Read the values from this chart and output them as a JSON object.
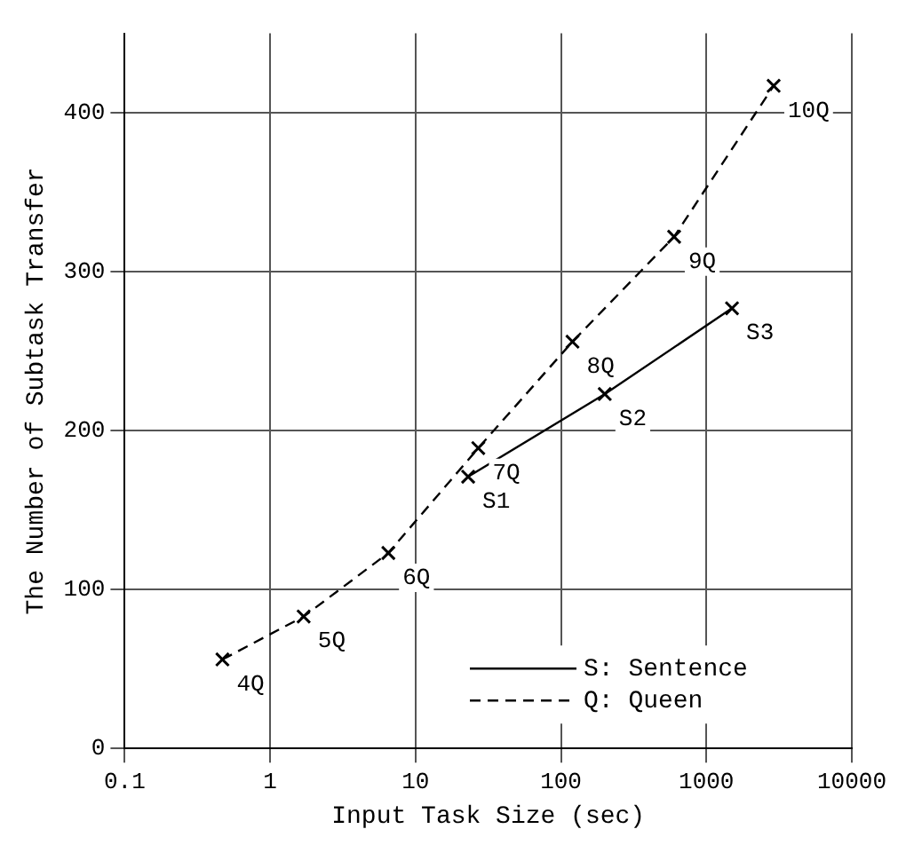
{
  "chart_data": {
    "type": "line",
    "xlabel": "Input Task Size (sec)",
    "ylabel": "The Number of Subtask Transfer",
    "log": "x",
    "xlim": [
      0.1,
      10000
    ],
    "xticks": [
      0.1,
      1,
      10,
      100,
      1000,
      10000
    ],
    "ylim": [
      0,
      450
    ],
    "yticks": [
      0,
      100,
      200,
      300,
      400
    ],
    "grid": true,
    "legend": "bottom right",
    "marker": "cross",
    "series": [
      {
        "name": "S: Sentence",
        "color": "#000000",
        "line_style": "solid",
        "x": [
          23,
          200,
          1500
        ],
        "values": [
          171,
          223,
          277
        ]
      },
      {
        "name": "Q: Queen",
        "color": "#000000",
        "line_style": "dashed",
        "x": [
          0.47,
          1.7,
          6.5,
          27,
          120,
          600,
          2900
        ],
        "values": [
          56,
          83,
          123,
          189,
          256,
          322,
          417
        ]
      }
    ],
    "annotations": [
      {
        "text": "S1",
        "x": 23,
        "y": 171
      },
      {
        "text": "S2",
        "x": 200,
        "y": 223
      },
      {
        "text": "S3",
        "x": 1500,
        "y": 277
      },
      {
        "text": "4Q",
        "x": 0.47,
        "y": 56
      },
      {
        "text": "5Q",
        "x": 1.7,
        "y": 83
      },
      {
        "text": "6Q",
        "x": 6.5,
        "y": 123
      },
      {
        "text": "7Q",
        "x": 27,
        "y": 189
      },
      {
        "text": "8Q",
        "x": 120,
        "y": 256
      },
      {
        "text": "9Q",
        "x": 600,
        "y": 322
      },
      {
        "text": "10Q",
        "x": 2900,
        "y": 417
      }
    ]
  }
}
